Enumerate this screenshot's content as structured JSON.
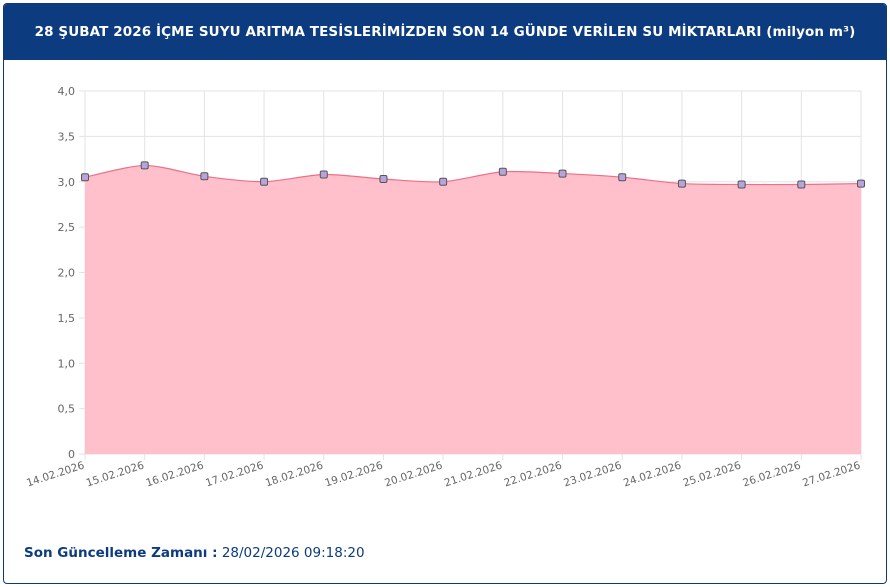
{
  "header": {
    "title": "28 ŞUBAT 2026 İÇME SUYU ARITMA TESİSLERİMİZDEN SON 14 GÜNDE VERİLEN SU MİKTARLARI (milyon m³)"
  },
  "chart_data": {
    "type": "area",
    "categories": [
      "14.02.2026",
      "15.02.2026",
      "16.02.2026",
      "17.02.2026",
      "18.02.2026",
      "19.02.2026",
      "20.02.2026",
      "21.02.2026",
      "22.02.2026",
      "23.02.2026",
      "24.02.2026",
      "25.02.2026",
      "26.02.2026",
      "27.02.2026"
    ],
    "values": [
      3.05,
      3.18,
      3.06,
      3.0,
      3.08,
      3.03,
      3.0,
      3.11,
      3.09,
      3.05,
      2.98,
      2.97,
      2.97,
      2.98
    ],
    "ylim": [
      0,
      4
    ],
    "yticks": [
      "0",
      "0,5",
      "1,0",
      "1,5",
      "2,0",
      "2,5",
      "3,0",
      "3,5",
      "4,0"
    ],
    "grid": true,
    "colors": {
      "fill": "#ffc0cc",
      "line": "#ee6f86",
      "point_fill": "#b7a4dd",
      "point_stroke": "#555555",
      "grid": "#e3e3e3"
    }
  },
  "footer": {
    "label": "Son Güncelleme Zamanı :",
    "value": "28/02/2026 09:18:20"
  }
}
